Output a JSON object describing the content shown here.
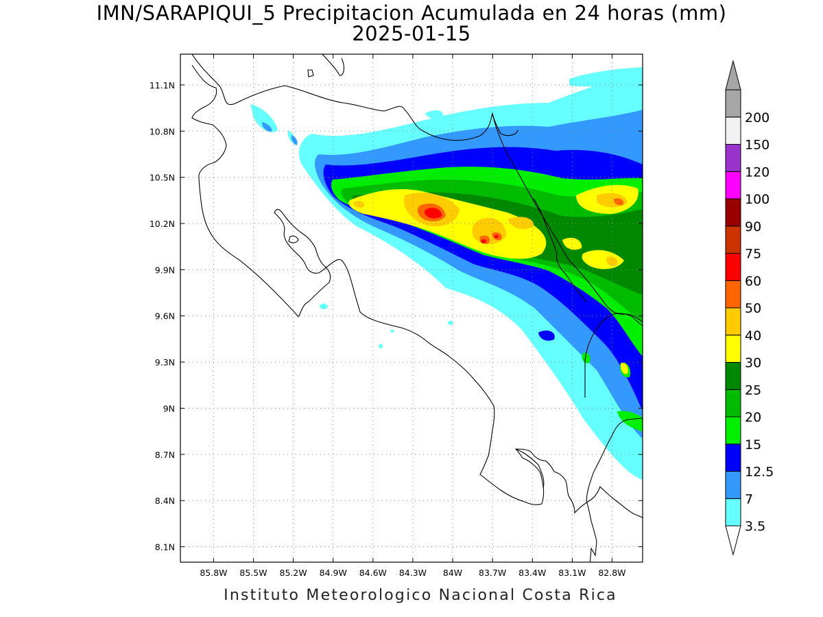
{
  "title": {
    "line1": "IMN/SARAPIQUI_5 Precipitacion Acumulada en 24 horas (mm)",
    "line2": "2025-01-15"
  },
  "footer": "Instituto Meteorologico Nacional Costa Rica",
  "map": {
    "lon_range": [
      -86.05,
      -82.57
    ],
    "lat_range": [
      8.0,
      11.3
    ],
    "lon_ticks": [
      {
        "value": -85.8,
        "label": "85.8W"
      },
      {
        "value": -85.5,
        "label": "85.5W"
      },
      {
        "value": -85.2,
        "label": "85.2W"
      },
      {
        "value": -84.9,
        "label": "84.9W"
      },
      {
        "value": -84.6,
        "label": "84.6W"
      },
      {
        "value": -84.3,
        "label": "84.3W"
      },
      {
        "value": -84.0,
        "label": "84W"
      },
      {
        "value": -83.7,
        "label": "83.7W"
      },
      {
        "value": -83.4,
        "label": "83.4W"
      },
      {
        "value": -83.1,
        "label": "83.1W"
      },
      {
        "value": -82.8,
        "label": "82.8W"
      }
    ],
    "lat_ticks": [
      {
        "value": 11.1,
        "label": "11.1N"
      },
      {
        "value": 10.8,
        "label": "10.8N"
      },
      {
        "value": 10.5,
        "label": "10.5N"
      },
      {
        "value": 10.2,
        "label": "10.2N"
      },
      {
        "value": 9.9,
        "label": "9.9N"
      },
      {
        "value": 9.6,
        "label": "9.6N"
      },
      {
        "value": 9.3,
        "label": "9.3N"
      },
      {
        "value": 9.0,
        "label": "9N"
      },
      {
        "value": 8.7,
        "label": "8.7N"
      },
      {
        "value": 8.4,
        "label": "8.4N"
      },
      {
        "value": 8.1,
        "label": "8.1N"
      }
    ],
    "grid": "dotted"
  },
  "colorbar": {
    "units": "mm",
    "levels": [
      {
        "label": "3.5",
        "color": "#66ffff"
      },
      {
        "label": "7",
        "color": "#3399ff"
      },
      {
        "label": "12.5",
        "color": "#0000ff"
      },
      {
        "label": "15",
        "color": "#00ee00"
      },
      {
        "label": "20",
        "color": "#00bb00"
      },
      {
        "label": "25",
        "color": "#008800"
      },
      {
        "label": "30",
        "color": "#ffff00"
      },
      {
        "label": "40",
        "color": "#ffcc00"
      },
      {
        "label": "50",
        "color": "#ff6600"
      },
      {
        "label": "60",
        "color": "#ff0000"
      },
      {
        "label": "75",
        "color": "#cc3300"
      },
      {
        "label": "90",
        "color": "#990000"
      },
      {
        "label": "100",
        "color": "#ff00ff"
      },
      {
        "label": "120",
        "color": "#9933cc"
      },
      {
        "label": "150",
        "color": "#f2f2f2"
      },
      {
        "label": "200",
        "color": "#a6a6a6"
      }
    ],
    "under_color": "#ffffff",
    "over_color": "#a6a6a6"
  }
}
